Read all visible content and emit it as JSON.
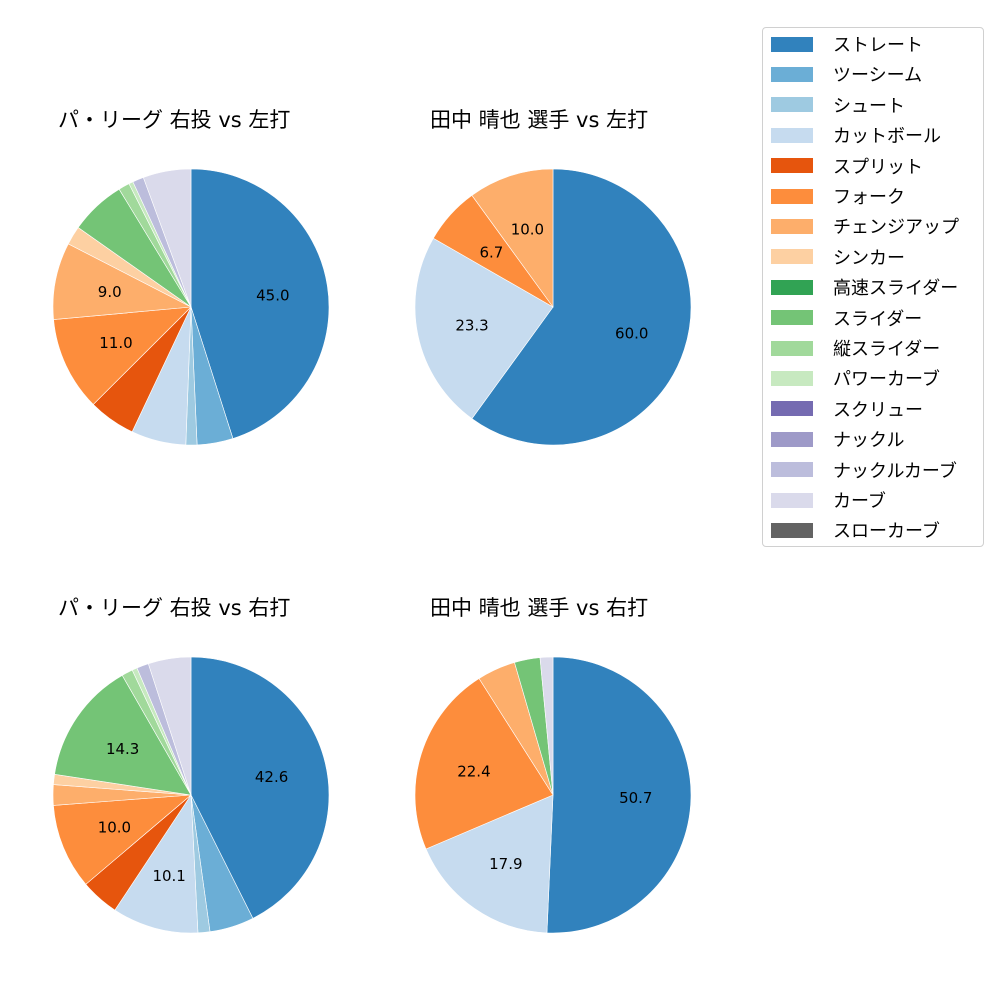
{
  "chart_data": [
    {
      "type": "pie",
      "title": "パ・リーグ 右投 vs 左打",
      "categories": [
        "ストレート",
        "ツーシーム",
        "シュート",
        "カットボール",
        "スプリット",
        "フォーク",
        "チェンジアップ",
        "シンカー",
        "高速スライダー",
        "スライダー",
        "縦スライダー",
        "パワーカーブ",
        "スクリュー",
        "ナックル",
        "ナックルカーブ",
        "カーブ",
        "スローカーブ"
      ],
      "values": [
        45.0,
        4.2,
        1.3,
        6.4,
        5.5,
        11.0,
        9.0,
        2.2,
        0,
        6.5,
        1.3,
        0.5,
        0,
        0,
        1.3,
        5.6,
        0
      ],
      "labels_shown": [
        "45.0",
        "11.0",
        "9.0"
      ],
      "startangle": 90,
      "counterclock": false
    },
    {
      "type": "pie",
      "title": "田中 晴也 選手 vs 左打",
      "categories": [
        "ストレート",
        "カットボール",
        "フォーク",
        "チェンジアップ"
      ],
      "values": [
        60.0,
        23.3,
        6.7,
        10.0
      ],
      "labels_shown": [
        "60.0",
        "23.3",
        "6.7",
        "10.0"
      ],
      "startangle": 90,
      "counterclock": false
    },
    {
      "type": "pie",
      "title": "パ・リーグ 右投 vs 右打",
      "categories": [
        "ストレート",
        "ツーシーム",
        "シュート",
        "カットボール",
        "スプリット",
        "フォーク",
        "チェンジアップ",
        "シンカー",
        "高速スライダー",
        "スライダー",
        "縦スライダー",
        "パワーカーブ",
        "スクリュー",
        "ナックル",
        "ナックルカーブ",
        "カーブ",
        "スローカーブ"
      ],
      "values": [
        42.6,
        5.2,
        1.4,
        10.1,
        4.5,
        10.0,
        2.4,
        1.2,
        0,
        14.3,
        1.3,
        0.6,
        0,
        0,
        1.4,
        5.0,
        0
      ],
      "labels_shown": [
        "42.6",
        "10.1",
        "10.0",
        "14.3"
      ],
      "startangle": 90,
      "counterclock": false
    },
    {
      "type": "pie",
      "title": "田中 晴也 選手 vs 右打",
      "categories": [
        "ストレート",
        "カットボール",
        "フォーク",
        "チェンジアップ",
        "スライダー",
        "カーブ"
      ],
      "values": [
        50.7,
        17.9,
        22.4,
        4.5,
        3.0,
        1.5
      ],
      "labels_shown": [
        "50.7",
        "17.9",
        "22.4"
      ],
      "startangle": 90,
      "counterclock": false
    }
  ],
  "panels": [
    {
      "title": "パ・リーグ 右投 vs 左打"
    },
    {
      "title": "田中 晴也 選手 vs 左打"
    },
    {
      "title": "パ・リーグ 右投 vs 右打"
    },
    {
      "title": "田中 晴也 選手 vs 右打"
    }
  ],
  "legend": {
    "position": "upper right",
    "items": [
      {
        "label": "ストレート",
        "color": "#3182bd"
      },
      {
        "label": "ツーシーム",
        "color": "#6baed6"
      },
      {
        "label": "シュート",
        "color": "#9ecae1"
      },
      {
        "label": "カットボール",
        "color": "#c6dbef"
      },
      {
        "label": "スプリット",
        "color": "#e6550d"
      },
      {
        "label": "フォーク",
        "color": "#fd8d3c"
      },
      {
        "label": "チェンジアップ",
        "color": "#fdae6b"
      },
      {
        "label": "シンカー",
        "color": "#fdd0a2"
      },
      {
        "label": "高速スライダー",
        "color": "#31a354"
      },
      {
        "label": "スライダー",
        "color": "#74c476"
      },
      {
        "label": "縦スライダー",
        "color": "#a1d99b"
      },
      {
        "label": "パワーカーブ",
        "color": "#c7e9c0"
      },
      {
        "label": "スクリュー",
        "color": "#756bb1"
      },
      {
        "label": "ナックル",
        "color": "#9e9ac8"
      },
      {
        "label": "ナックルカーブ",
        "color": "#bcbddc"
      },
      {
        "label": "カーブ",
        "color": "#dadaeb"
      },
      {
        "label": "スローカーブ",
        "color": "#636363"
      }
    ]
  }
}
